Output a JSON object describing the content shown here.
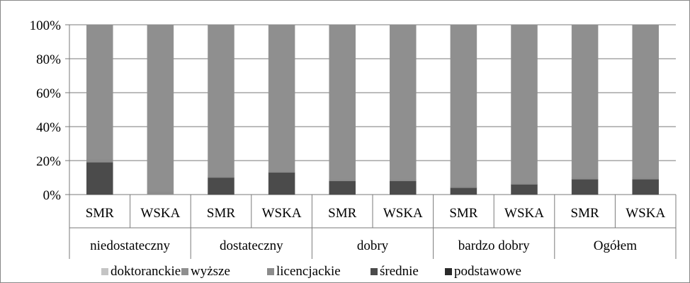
{
  "chart_data": {
    "type": "bar",
    "stacked": true,
    "percent": true,
    "ylim": [
      0,
      100
    ],
    "yticks": [
      "0%",
      "20%",
      "40%",
      "60%",
      "80%",
      "100%"
    ],
    "categories": [
      "SMR",
      "WSKA",
      "SMR",
      "WSKA",
      "SMR",
      "WSKA",
      "SMR",
      "WSKA",
      "SMR",
      "WSKA"
    ],
    "groups": [
      "niedostateczny",
      "dostateczny",
      "dobry",
      "bardzo dobry",
      "Ogółem"
    ],
    "series": [
      {
        "name": "podstawowe",
        "color": "#2a2a2a",
        "values": [
          0,
          0,
          0,
          0,
          0,
          0,
          0,
          0,
          0,
          0
        ]
      },
      {
        "name": "średnie",
        "color": "#4b4b4b",
        "values": [
          19,
          0,
          10,
          13,
          8,
          8,
          4,
          6,
          9,
          9
        ]
      },
      {
        "name": "licencjackie",
        "color": "#8c8c8c",
        "values": [
          2,
          2,
          1,
          1,
          1,
          1,
          1,
          1,
          1,
          1
        ]
      },
      {
        "name": "wyższe",
        "color": "#8f8f8f",
        "values": [
          79,
          98,
          89,
          86,
          91,
          91,
          95,
          93,
          90,
          90
        ]
      },
      {
        "name": "doktoranckie",
        "color": "#c4c4c4",
        "values": [
          0,
          0,
          0,
          0,
          0,
          0,
          0,
          0,
          0,
          0
        ]
      }
    ],
    "legend": [
      "doktoranckie",
      "wyższe",
      "licencjackie",
      "średnie",
      "podstawowe"
    ],
    "legend_position": "bottom",
    "grid": true
  }
}
